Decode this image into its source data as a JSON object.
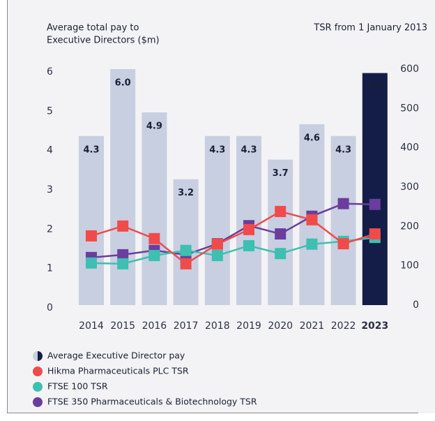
{
  "chart_data": {
    "type": "bar_line",
    "ylabel_lines": [
      "Average total pay to",
      "Executive Directors ($m)"
    ],
    "y2label": "TSR from 1 January 2013",
    "categories": [
      "2014",
      "2015",
      "2016",
      "2017",
      "2018",
      "2019",
      "2020",
      "2021",
      "2022",
      "2023"
    ],
    "highlight_category": "2023",
    "bars": {
      "name": "Average Executive Director pay",
      "color": "#c8cfe0",
      "highlight_color": "#131d48",
      "values": [
        4.3,
        6.0,
        4.9,
        3.2,
        4.3,
        4.3,
        3.7,
        4.6,
        4.3,
        5.9
      ],
      "value_labels": [
        "4.3",
        "6.0",
        "4.9",
        "3.2",
        "4.3",
        "4.3",
        "3.7",
        "4.6",
        "4.3",
        "5.9"
      ]
    },
    "series": [
      {
        "name": "Hikma Pharmaceuticals PLC TSR",
        "color": "#ef4b4b",
        "axis": "y2",
        "values": [
          176,
          201,
          169,
          105,
          155,
          192,
          238,
          217,
          156,
          181
        ]
      },
      {
        "name": "FTSE 100 TSR",
        "color": "#3dbfb1",
        "axis": "y2",
        "values": [
          107,
          105,
          126,
          139,
          126,
          151,
          131,
          155,
          162,
          172
        ]
      },
      {
        "name": "FTSE 350 Pharmaceuticals & Biotechnology TSR",
        "color": "#6a3d9e",
        "axis": "y2",
        "values": [
          121,
          128,
          139,
          128,
          156,
          202,
          181,
          226,
          258,
          256
        ]
      }
    ],
    "ylim": [
      0,
      6
    ],
    "yticks": [
      0,
      1,
      2,
      3,
      4,
      5,
      6
    ],
    "y2lim": [
      0,
      600
    ],
    "y2ticks": [
      0,
      100,
      200,
      300,
      400,
      500,
      600
    ]
  }
}
